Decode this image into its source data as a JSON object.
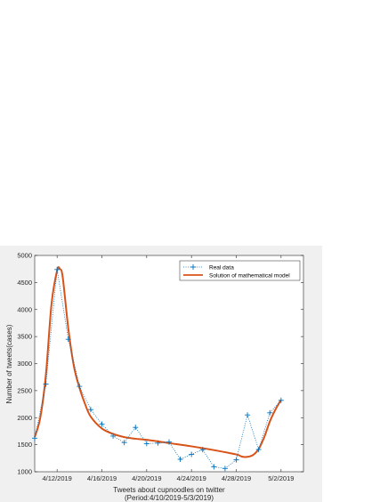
{
  "chart_data": {
    "type": "line",
    "title": "",
    "xlabel_lines": [
      "Tweets about cupnoodles on twitter",
      "(Period:4/10/2019-5/3/2019)"
    ],
    "ylabel": "Number of tweets(cases)",
    "xlim": [
      "2019-04-10",
      "2019-05-04"
    ],
    "ylim": [
      1000,
      5000
    ],
    "xticks": [
      "2019-04-12",
      "2019-04-16",
      "2019-04-20",
      "2019-04-24",
      "2019-04-28",
      "2019-05-02"
    ],
    "xtick_labels": [
      "4/12/2019",
      "4/16/2019",
      "4/20/2019",
      "4/24/2019",
      "4/28/2019",
      "5/2/2019"
    ],
    "yticks": [
      1000,
      1500,
      2000,
      2500,
      3000,
      3500,
      4000,
      4500,
      5000
    ],
    "legend_position": "top-right",
    "grid": false,
    "series": [
      {
        "name": "Real data",
        "style": "dotted-plus",
        "color": "#0072BD",
        "x": [
          "2019-04-10",
          "2019-04-11",
          "2019-04-12",
          "2019-04-13",
          "2019-04-14",
          "2019-04-15",
          "2019-04-16",
          "2019-04-17",
          "2019-04-18",
          "2019-04-19",
          "2019-04-20",
          "2019-04-21",
          "2019-04-22",
          "2019-04-23",
          "2019-04-24",
          "2019-04-25",
          "2019-04-26",
          "2019-04-27",
          "2019-04-28",
          "2019-04-29",
          "2019-04-30",
          "2019-05-01",
          "2019-05-02"
        ],
        "y": [
          1620,
          2620,
          4740,
          3450,
          2580,
          2150,
          1880,
          1660,
          1540,
          1820,
          1520,
          1530,
          1550,
          1230,
          1320,
          1410,
          1090,
          1060,
          1220,
          2050,
          1410,
          2090,
          2320
        ]
      },
      {
        "name": "Solution of mathematical model",
        "style": "solid",
        "color": "#D95319",
        "x": [
          "2019-04-10",
          "2019-04-10T12:00",
          "2019-04-11",
          "2019-04-11T12:00",
          "2019-04-12",
          "2019-04-12T06:00",
          "2019-04-12T12:00",
          "2019-04-13",
          "2019-04-13T12:00",
          "2019-04-14",
          "2019-04-14T12:00",
          "2019-04-15",
          "2019-04-16",
          "2019-04-17",
          "2019-04-18",
          "2019-04-19",
          "2019-04-20",
          "2019-04-22",
          "2019-04-24",
          "2019-04-26",
          "2019-04-28",
          "2019-04-28T12:00",
          "2019-04-29",
          "2019-04-29T12:00",
          "2019-04-30",
          "2019-04-30T12:00",
          "2019-05-01",
          "2019-05-01T12:00",
          "2019-05-02"
        ],
        "y": [
          1640,
          2000,
          2800,
          4100,
          4720,
          4750,
          4600,
          3650,
          2950,
          2550,
          2250,
          2020,
          1800,
          1700,
          1640,
          1610,
          1590,
          1530,
          1470,
          1400,
          1320,
          1280,
          1275,
          1310,
          1420,
          1640,
          1930,
          2150,
          2330
        ]
      }
    ]
  }
}
